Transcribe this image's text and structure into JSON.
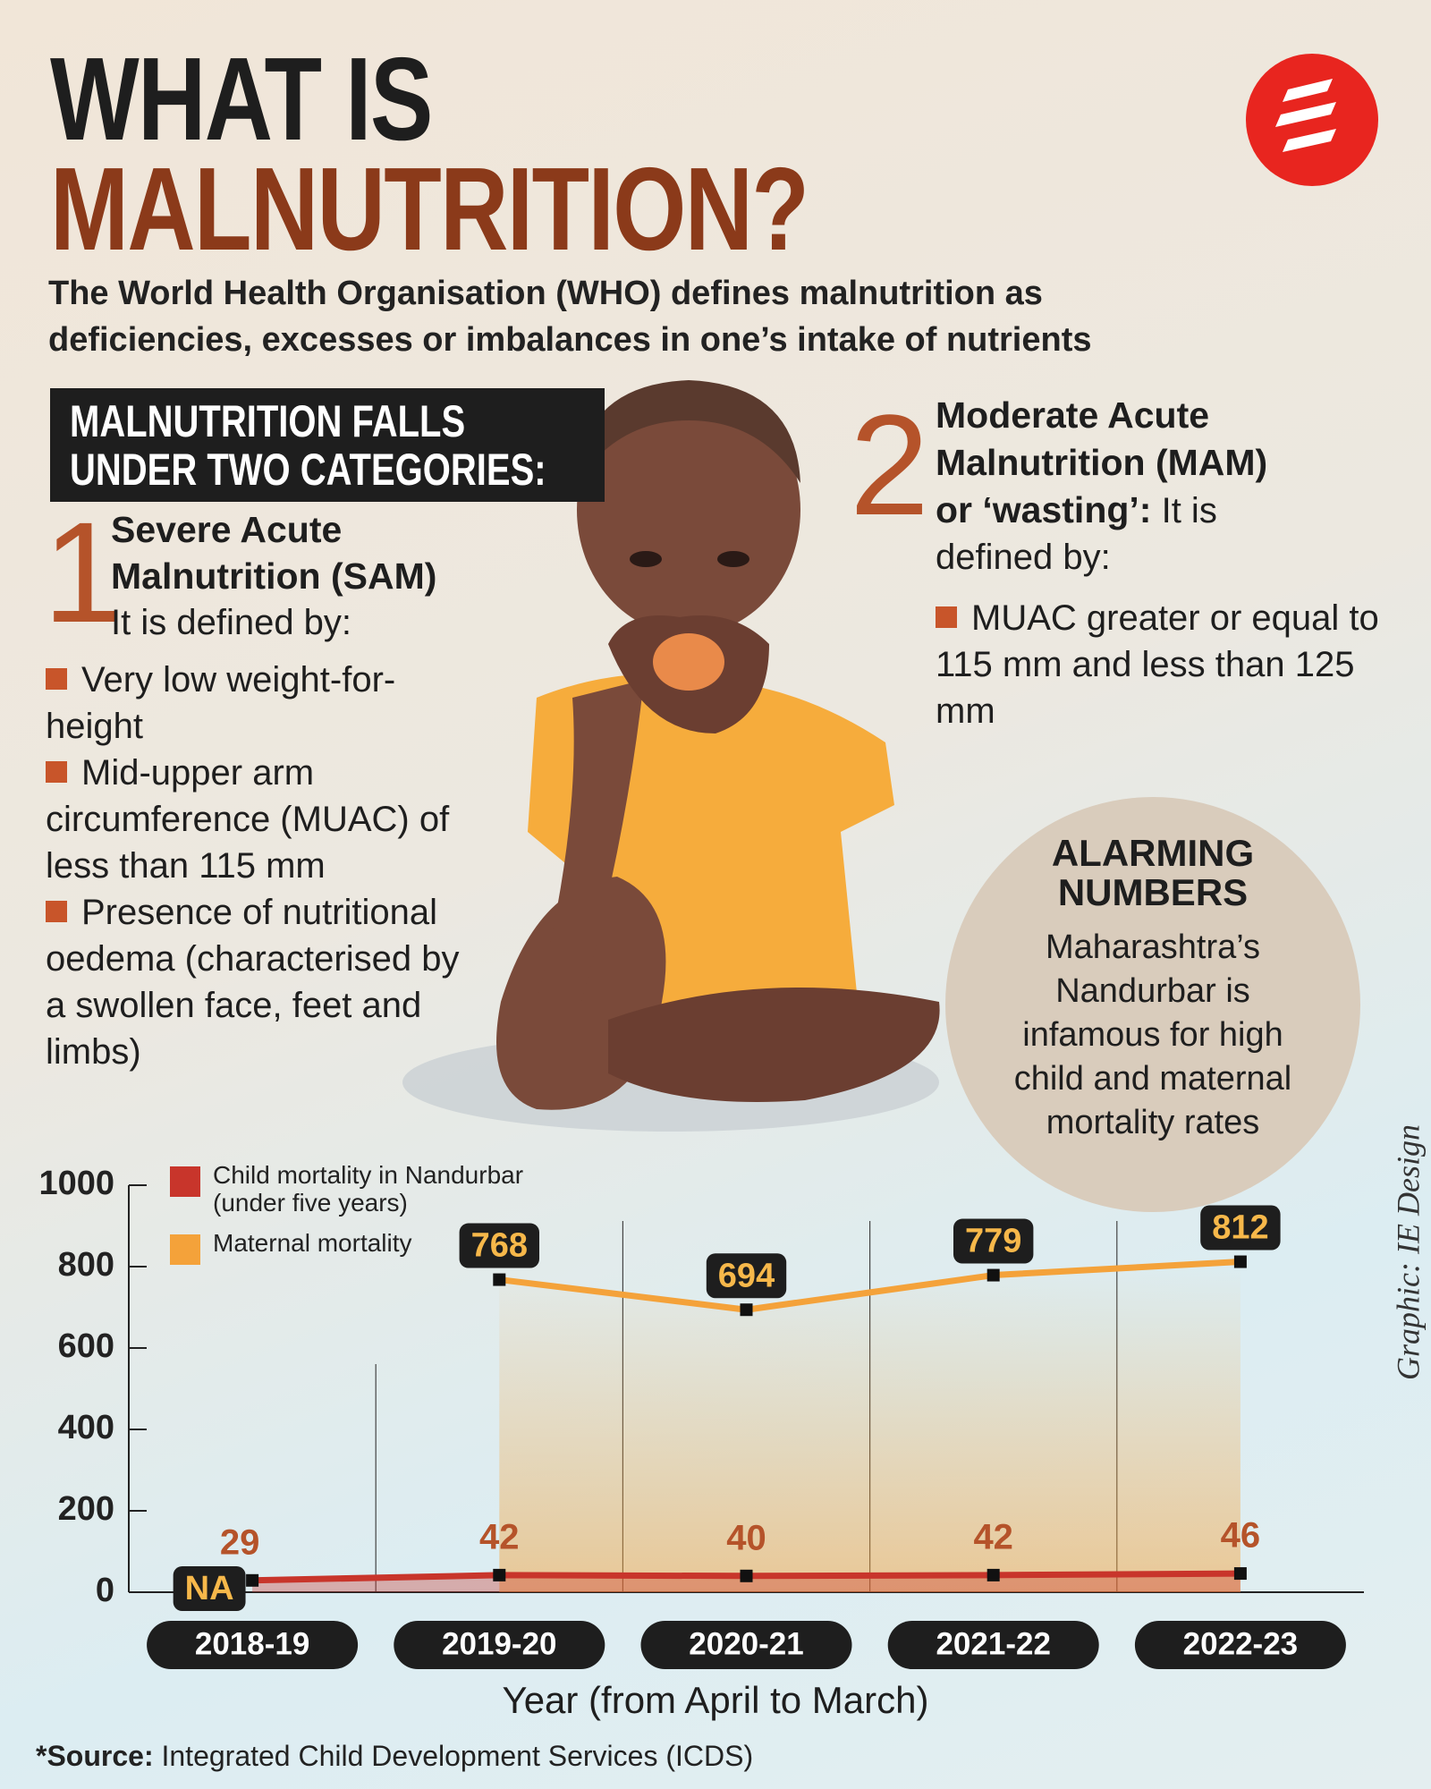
{
  "header": {
    "title_line1": "WHAT IS",
    "title_line2": "MALNUTRITION?",
    "intro": [
      "The World Health Organisation (WHO) defines malnutrition as",
      "deficiencies, excesses or imbalances in one’s intake of nutrients"
    ]
  },
  "categories_box": "MALNUTRITION FALLS UNDER TWO CATEGORIES:",
  "sam": {
    "number": "1",
    "title": "Severe Acute Malnutrition (SAM)",
    "defined_by": "It is defined by:",
    "criteria": [
      "Very low weight-for-height",
      "Mid-upper arm circumference (MUAC) of less than 115 mm",
      "Presence of nutritional oedema (characterised by a swollen face, feet and limbs)"
    ]
  },
  "mam": {
    "number": "2",
    "title": "Moderate Acute Malnutrition (MAM) or ‘wasting’:",
    "defined_by": "It is defined by:",
    "criteria": [
      "MUAC greater or equal to 115 mm and less than 125 mm"
    ]
  },
  "callout": {
    "title": "ALARMING NUMBERS",
    "text": "Maharashtra’s Nandurbar is infamous for high child and maternal mortality rates"
  },
  "credit": "Graphic: IE Design",
  "source": {
    "label": "*Source:",
    "text": "Integrated Child Development Services (ICDS)"
  },
  "chart_data": {
    "type": "line",
    "categories": [
      "2018-19",
      "2019-20",
      "2020-21",
      "2021-22",
      "2022-23"
    ],
    "series": [
      {
        "name": "Child mortality in Nandurbar (under five years)",
        "color": "#c8352b",
        "values": [
          29,
          42,
          40,
          42,
          46
        ]
      },
      {
        "name": "Maternal mortality",
        "color": "#f4a23a",
        "values": [
          null,
          768,
          694,
          779,
          812
        ],
        "value_labels": [
          "NA",
          "768",
          "694",
          "779",
          "812"
        ]
      }
    ],
    "ylim": [
      0,
      1000
    ],
    "yticks": [
      0,
      200,
      400,
      600,
      800,
      1000
    ],
    "xlabel": "Year (from April to March)"
  }
}
